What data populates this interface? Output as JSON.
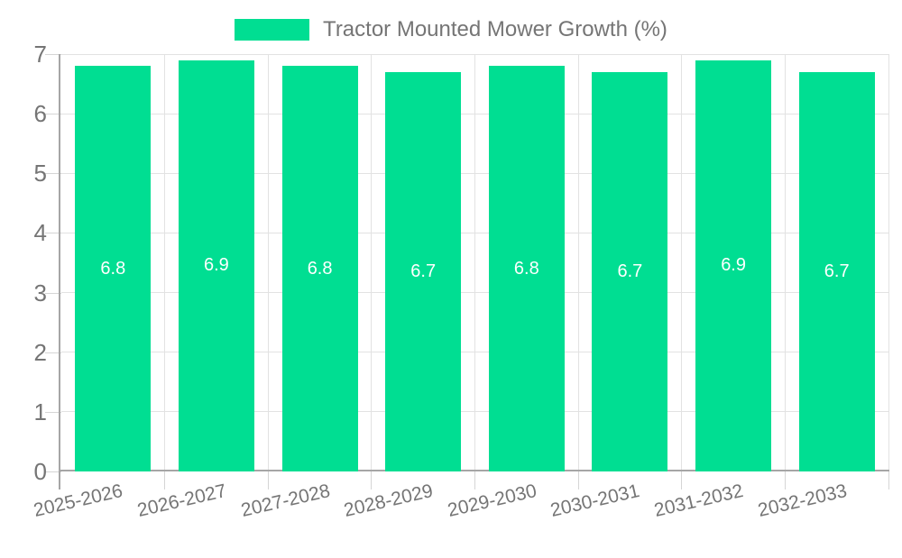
{
  "chart_data": {
    "type": "bar",
    "title": "",
    "xlabel": "",
    "ylabel": "",
    "legend_position": "top",
    "categories": [
      "2025-2026",
      "2026-2027",
      "2027-2028",
      "2028-2029",
      "2029-2030",
      "2030-2031",
      "2031-2032",
      "2032-2033"
    ],
    "series": [
      {
        "name": "Tractor Mounted Mower Growth (%)",
        "values": [
          6.8,
          6.9,
          6.8,
          6.7,
          6.8,
          6.7,
          6.9,
          6.7
        ]
      }
    ],
    "ylim": [
      0,
      7
    ],
    "yticks": [
      0,
      1,
      2,
      3,
      4,
      5,
      6,
      7
    ],
    "grid": true,
    "data_labels_shown": true,
    "x_label_rotation_deg": -13,
    "colors": {
      "bar": "#00DE92",
      "data_label": "#FFFFFF",
      "axis_text": "#757575",
      "axis_line": "#A6A6A6",
      "gridline": "#E2E2E2",
      "tick": "#D5D5D5",
      "background": "#FFFFFF"
    }
  }
}
